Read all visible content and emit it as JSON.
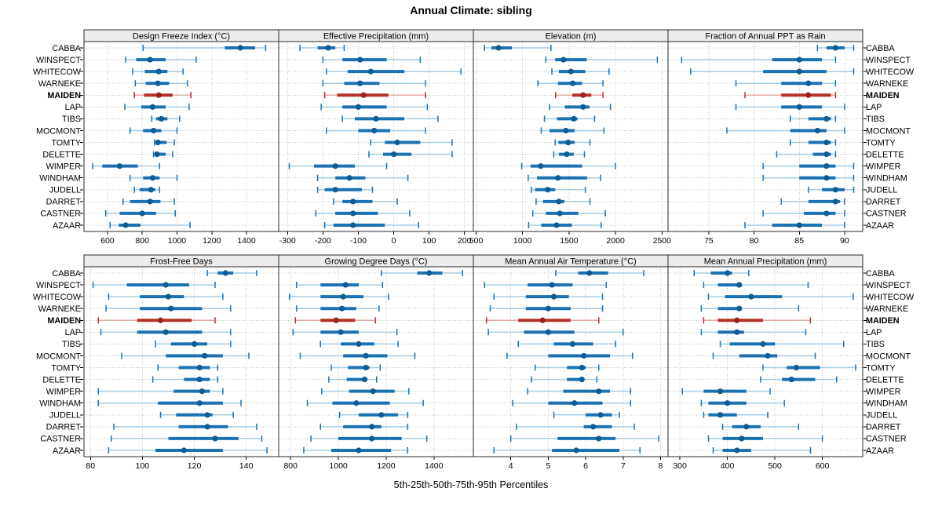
{
  "title": "Annual Climate: sibling",
  "xlabel": "5th-25th-50th-75th-95th Percentiles",
  "percentile_order": [
    "p5",
    "p25",
    "p50",
    "p75",
    "p95"
  ],
  "sites": [
    "CABBA",
    "WINSPECT",
    "WHITECOW",
    "WARNEKE",
    "MAIDEN",
    "LAP",
    "TIBS",
    "MOCMONT",
    "TOMTY",
    "DELETTE",
    "WIMPER",
    "WINDHAM",
    "JUDELL",
    "DARRET",
    "CASTNER",
    "AZAAR"
  ],
  "highlight_site": "MAIDEN",
  "colors": {
    "blue": "#1a72b2",
    "blue_light": "#a6cbe3",
    "blue_dot": "#0d5c94",
    "red": "#b43228",
    "red_light": "#e3aba6",
    "red_dot": "#99211a",
    "strip_bg": "#ececec",
    "panel_bg": "#ffffff",
    "grid": "#c4c4c4",
    "border": "#2a2a2a",
    "tick": "#000000",
    "text": "#000000"
  },
  "chart_data": {
    "type": "percentile-dotplot",
    "layout": {
      "rows": 2,
      "cols": 4,
      "grid": "on",
      "strip_position": "top"
    },
    "panels": [
      {
        "title": "Design Freeze Index (°C)",
        "row": 0,
        "col": 0,
        "xlim": [
          465,
          1585
        ],
        "ticks": [
          600,
          800,
          1000,
          1200,
          1400
        ],
        "values": {
          "CABBA": [
            805,
            1275,
            1365,
            1450,
            1510
          ],
          "WINSPECT": [
            705,
            765,
            845,
            935,
            1110
          ],
          "WHITECOW": [
            745,
            815,
            895,
            945,
            1035
          ],
          "WARNEKE": [
            760,
            820,
            890,
            955,
            1060
          ],
          "MAIDEN": [
            755,
            810,
            895,
            975,
            1080
          ],
          "LAP": [
            700,
            795,
            860,
            935,
            1070
          ],
          "TIBS": [
            855,
            880,
            910,
            945,
            1015
          ],
          "MOCMONT": [
            730,
            805,
            865,
            910,
            1000
          ],
          "TOMTY": [
            870,
            885,
            890,
            940,
            985
          ],
          "DELETTE": [
            865,
            880,
            885,
            935,
            975
          ],
          "WIMPER": [
            515,
            570,
            670,
            775,
            900
          ],
          "WINDHAM": [
            730,
            805,
            860,
            900,
            1000
          ],
          "JUDELL": [
            755,
            785,
            850,
            875,
            900
          ],
          "DARRET": [
            690,
            730,
            845,
            905,
            985
          ],
          "CASTNER": [
            590,
            670,
            800,
            880,
            990
          ],
          "AZAAR": [
            615,
            665,
            705,
            790,
            1075
          ]
        }
      },
      {
        "title": "Effective Precipitation (mm)",
        "row": 0,
        "col": 1,
        "xlim": [
          -325,
          225
        ],
        "ticks": [
          -300,
          -200,
          -100,
          0,
          100,
          200
        ],
        "values": {
          "CABBA": [
            -265,
            -215,
            -185,
            -165,
            -140
          ],
          "WINSPECT": [
            -200,
            -145,
            -95,
            -20,
            75
          ],
          "WHITECOW": [
            -190,
            -130,
            -65,
            30,
            190
          ],
          "WARNEKE": [
            -200,
            -140,
            -95,
            -40,
            90
          ],
          "MAIDEN": [
            -195,
            -160,
            -85,
            -15,
            90
          ],
          "LAP": [
            -205,
            -145,
            -100,
            -20,
            95
          ],
          "TIBS": [
            -145,
            -110,
            -50,
            30,
            125
          ],
          "MOCMONT": [
            -190,
            -100,
            -55,
            -10,
            90
          ],
          "TOMTY": [
            -65,
            -25,
            10,
            75,
            165
          ],
          "DELETTE": [
            -70,
            -30,
            0,
            50,
            165
          ],
          "WIMPER": [
            -295,
            -225,
            -165,
            -110,
            -20
          ],
          "WINDHAM": [
            -215,
            -165,
            -125,
            -80,
            40
          ],
          "JUDELL": [
            -215,
            -195,
            -165,
            -90,
            -60
          ],
          "DARRET": [
            -170,
            -145,
            -115,
            -60,
            10
          ],
          "CASTNER": [
            -220,
            -165,
            -115,
            -45,
            45
          ],
          "AZAAR": [
            -195,
            -170,
            -115,
            -25,
            70
          ]
        }
      },
      {
        "title": "Elevation (m)",
        "row": 0,
        "col": 2,
        "xlim": [
          470,
          2565
        ],
        "ticks": [
          500,
          1000,
          1500,
          2000,
          2500
        ],
        "values": {
          "CABBA": [
            590,
            665,
            740,
            885,
            1305
          ],
          "WINSPECT": [
            1250,
            1350,
            1440,
            1690,
            2450
          ],
          "WHITECOW": [
            1315,
            1390,
            1520,
            1675,
            1930
          ],
          "WARNEKE": [
            1165,
            1380,
            1540,
            1640,
            1865
          ],
          "MAIDEN": [
            1355,
            1535,
            1650,
            1740,
            1865
          ],
          "LAP": [
            1290,
            1455,
            1650,
            1720,
            1945
          ],
          "TIBS": [
            1235,
            1370,
            1550,
            1590,
            1775
          ],
          "MOCMONT": [
            1200,
            1290,
            1465,
            1560,
            1875
          ],
          "TOMTY": [
            1350,
            1385,
            1490,
            1560,
            1725
          ],
          "DELETTE": [
            1335,
            1390,
            1475,
            1550,
            1665
          ],
          "WIMPER": [
            990,
            1085,
            1195,
            1640,
            2000
          ],
          "WINDHAM": [
            1060,
            1155,
            1380,
            1695,
            1840
          ],
          "JUDELL": [
            1095,
            1135,
            1270,
            1350,
            1675
          ],
          "DARRET": [
            1145,
            1220,
            1390,
            1450,
            1725
          ],
          "CASTNER": [
            1110,
            1250,
            1400,
            1600,
            1890
          ],
          "AZAAR": [
            1065,
            1200,
            1365,
            1530,
            1845
          ]
        }
      },
      {
        "title": "Fraction of Annual PPT as Rain",
        "row": 0,
        "col": 3,
        "xlim": [
          70.5,
          92
        ],
        "ticks": [
          75,
          80,
          85,
          90
        ],
        "values": {
          "CABBA": [
            87,
            88,
            89,
            90,
            91
          ],
          "WINSPECT": [
            72,
            82,
            85,
            87.5,
            89
          ],
          "WHITECOW": [
            73,
            81,
            85,
            88,
            91
          ],
          "WARNEKE": [
            78,
            83,
            86,
            87.5,
            89
          ],
          "MAIDEN": [
            79,
            83,
            86,
            88.5,
            89
          ],
          "LAP": [
            78,
            83,
            85,
            87.5,
            90
          ],
          "TIBS": [
            84,
            86,
            88,
            88.5,
            89
          ],
          "MOCMONT": [
            77,
            84,
            87,
            88,
            90
          ],
          "TOMTY": [
            84,
            86,
            88,
            88.5,
            89
          ],
          "DELETTE": [
            82.5,
            86.5,
            88,
            88.5,
            89
          ],
          "WIMPER": [
            81,
            85,
            88,
            89,
            91
          ],
          "WINDHAM": [
            81,
            85,
            88,
            89,
            91
          ],
          "JUDELL": [
            86,
            87.5,
            89,
            90,
            91
          ],
          "DARRET": [
            83,
            86,
            89,
            89.5,
            90
          ],
          "CASTNER": [
            81,
            85.5,
            88,
            89,
            90
          ],
          "AZAAR": [
            79,
            82,
            85,
            87.5,
            90
          ]
        }
      },
      {
        "title": "Frost-Free Days",
        "row": 1,
        "col": 0,
        "xlim": [
          77.5,
          152.5
        ],
        "ticks": [
          80,
          100,
          120,
          140
        ],
        "values": {
          "CABBA": [
            125,
            129,
            132,
            135,
            144
          ],
          "WINSPECT": [
            81,
            94,
            109,
            118,
            128
          ],
          "WHITECOW": [
            87,
            99,
            110,
            116,
            131
          ],
          "WARNEKE": [
            86,
            99,
            111,
            123,
            134
          ],
          "MAIDEN": [
            83,
            98,
            107,
            119,
            128
          ],
          "LAP": [
            84,
            98,
            109,
            123,
            134
          ],
          "TIBS": [
            105,
            111,
            120,
            125,
            134
          ],
          "MOCMONT": [
            92,
            109,
            124,
            131,
            141
          ],
          "TOMTY": [
            106,
            114,
            122,
            126,
            129
          ],
          "DELETTE": [
            104,
            116,
            122,
            126,
            129
          ],
          "WIMPER": [
            83,
            112,
            123,
            126,
            131
          ],
          "WINDHAM": [
            83,
            106,
            122,
            131,
            138
          ],
          "JUDELL": [
            107,
            113,
            125,
            127,
            135
          ],
          "DARRET": [
            89,
            114,
            125,
            133,
            144
          ],
          "CASTNER": [
            88,
            110,
            128,
            137,
            146
          ],
          "AZAAR": [
            87,
            105,
            116,
            131,
            148
          ]
        }
      },
      {
        "title": "Growing Degree Days (°C)",
        "row": 1,
        "col": 1,
        "xlim": [
          750,
          1565
        ],
        "ticks": [
          800,
          1000,
          1200,
          1400
        ],
        "values": {
          "CABBA": [
            1180,
            1330,
            1380,
            1435,
            1520
          ],
          "WINSPECT": [
            825,
            925,
            1030,
            1085,
            1185
          ],
          "WHITECOW": [
            795,
            925,
            1020,
            1105,
            1210
          ],
          "WARNEKE": [
            825,
            925,
            1015,
            1075,
            1170
          ],
          "MAIDEN": [
            820,
            925,
            990,
            1070,
            1155
          ],
          "LAP": [
            810,
            925,
            1010,
            1085,
            1245
          ],
          "TIBS": [
            925,
            1010,
            1085,
            1150,
            1250
          ],
          "MOCMONT": [
            840,
            1020,
            1115,
            1205,
            1320
          ],
          "TOMTY": [
            970,
            1040,
            1115,
            1130,
            1175
          ],
          "DELETTE": [
            960,
            1035,
            1110,
            1120,
            1160
          ],
          "WIMPER": [
            930,
            1045,
            1145,
            1235,
            1295
          ],
          "WINDHAM": [
            870,
            975,
            1075,
            1215,
            1355
          ],
          "JUDELL": [
            1005,
            1085,
            1180,
            1250,
            1290
          ],
          "DARRET": [
            925,
            1020,
            1140,
            1180,
            1290
          ],
          "CASTNER": [
            885,
            1000,
            1140,
            1265,
            1370
          ],
          "AZAAR": [
            855,
            970,
            1085,
            1220,
            1290
          ]
        }
      },
      {
        "title": "Mean Annual Air Temperature (°C)",
        "row": 1,
        "col": 2,
        "xlim": [
          3.0,
          8.2
        ],
        "ticks": [
          4,
          5,
          6,
          7,
          8
        ],
        "values": {
          "CABBA": [
            5.2,
            5.8,
            6.1,
            6.6,
            7.55
          ],
          "WINSPECT": [
            3.3,
            4.45,
            5.1,
            5.65,
            6.55
          ],
          "WHITECOW": [
            3.55,
            4.4,
            5.15,
            5.55,
            6.45
          ],
          "WARNEKE": [
            3.45,
            4.4,
            5.0,
            5.6,
            6.45
          ],
          "MAIDEN": [
            3.35,
            4.2,
            4.85,
            5.6,
            6.35
          ],
          "LAP": [
            3.4,
            4.35,
            5.0,
            5.7,
            7.0
          ],
          "TIBS": [
            4.2,
            5.15,
            5.65,
            6.2,
            6.8
          ],
          "MOCMONT": [
            3.9,
            5.0,
            5.95,
            6.65,
            7.25
          ],
          "TOMTY": [
            4.65,
            5.5,
            5.9,
            6.0,
            6.35
          ],
          "DELETTE": [
            4.55,
            5.5,
            5.9,
            5.95,
            6.3
          ],
          "WIMPER": [
            4.45,
            5.4,
            6.35,
            6.65,
            7.2
          ],
          "WINDHAM": [
            4.05,
            5.0,
            5.7,
            6.45,
            7.2
          ],
          "JUDELL": [
            5.15,
            6.0,
            6.4,
            6.7,
            6.9
          ],
          "DARRET": [
            4.15,
            5.95,
            6.2,
            6.7,
            7.3
          ],
          "CASTNER": [
            4.0,
            5.25,
            6.35,
            6.8,
            7.95
          ],
          "AZAAR": [
            3.55,
            5.1,
            5.75,
            6.9,
            7.45
          ]
        }
      },
      {
        "title": "Mean Annual Precipitation (mm)",
        "row": 1,
        "col": 3,
        "xlim": [
          275,
          685
        ],
        "ticks": [
          300,
          400,
          500,
          600
        ],
        "values": {
          "CABBA": [
            330,
            365,
            400,
            410,
            445
          ],
          "WINSPECT": [
            350,
            380,
            425,
            430,
            570
          ],
          "WHITECOW": [
            360,
            395,
            450,
            515,
            665
          ],
          "WARNEKE": [
            345,
            380,
            425,
            430,
            550
          ],
          "MAIDEN": [
            350,
            380,
            420,
            475,
            575
          ],
          "LAP": [
            345,
            380,
            420,
            435,
            565
          ],
          "TIBS": [
            385,
            405,
            475,
            500,
            645
          ],
          "MOCMONT": [
            370,
            425,
            485,
            505,
            585
          ],
          "TOMTY": [
            475,
            525,
            545,
            595,
            670
          ],
          "DELETTE": [
            470,
            515,
            535,
            585,
            630
          ],
          "WIMPER": [
            305,
            350,
            385,
            440,
            490
          ],
          "WINDHAM": [
            345,
            360,
            400,
            440,
            520
          ],
          "JUDELL": [
            350,
            360,
            385,
            420,
            485
          ],
          "DARRET": [
            390,
            410,
            440,
            470,
            550
          ],
          "CASTNER": [
            360,
            390,
            430,
            475,
            600
          ],
          "AZAAR": [
            370,
            390,
            420,
            450,
            575
          ]
        }
      }
    ]
  }
}
